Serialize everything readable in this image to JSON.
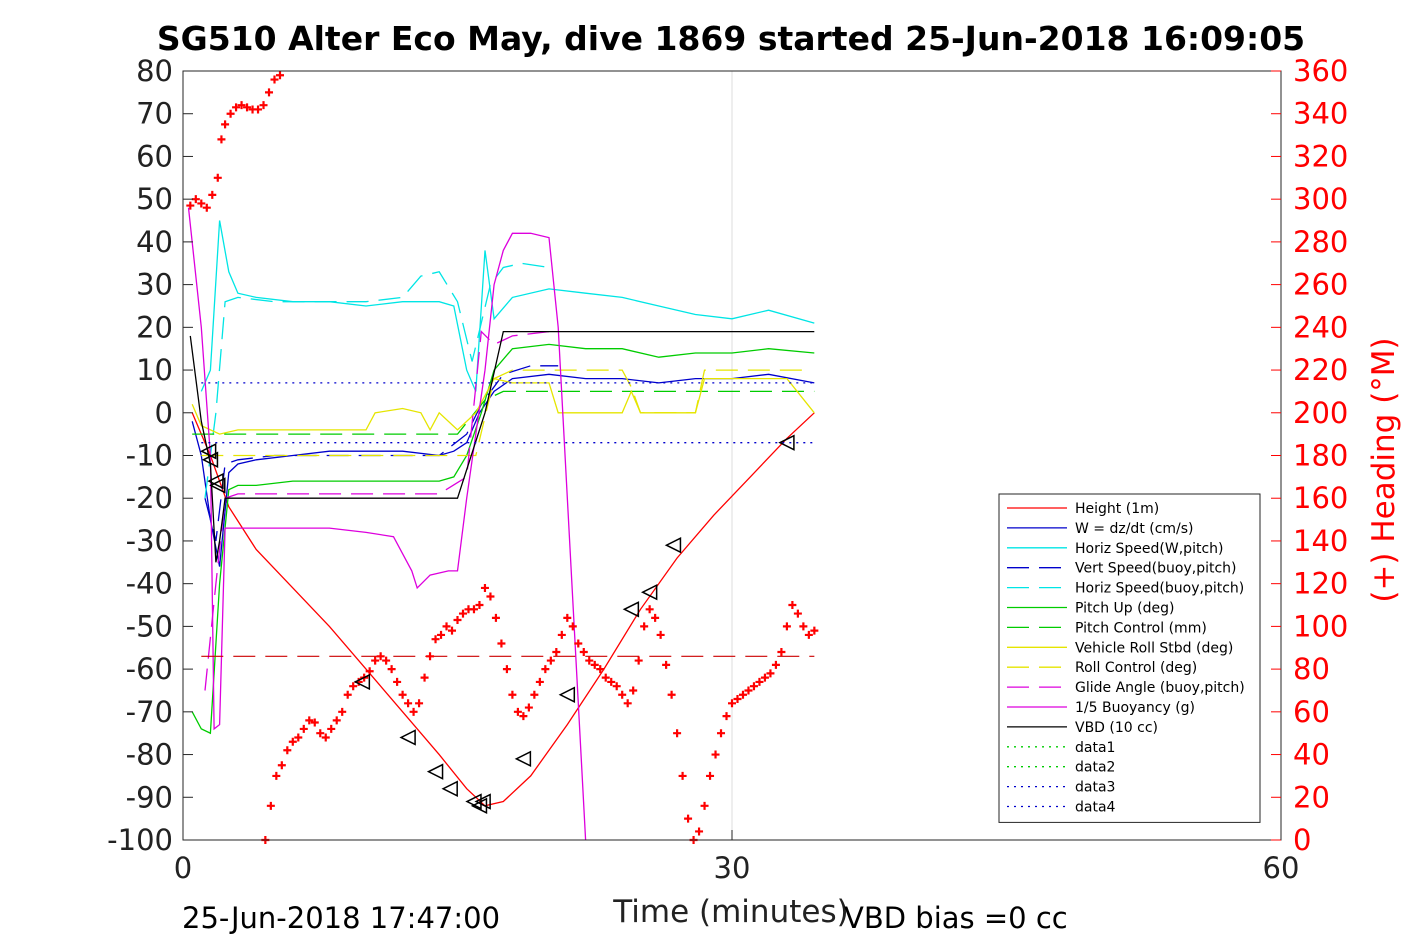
{
  "chart_data": {
    "type": "line",
    "title": "SG510 Alter Eco May, dive 1869 started 25-Jun-2018 16:09:05",
    "xlabel": "Time (minutes)",
    "ylabel_right": "(+) Heading (°M)",
    "footer_left": "25-Jun-2018 17:47:00",
    "footer_right": "VBD bias =0 cc",
    "xlim": [
      0,
      60
    ],
    "ylim_left": [
      -100,
      80
    ],
    "ylim_right": [
      0,
      360
    ],
    "x_ticks": [
      "0",
      "30",
      "60"
    ],
    "y_ticks_left": [
      "80",
      "70",
      "60",
      "50",
      "40",
      "30",
      "20",
      "10",
      "0",
      "-10",
      "-20",
      "-30",
      "-40",
      "-50",
      "-60",
      "-70",
      "-80",
      "-90",
      "-100"
    ],
    "y_ticks_right": [
      "360",
      "340",
      "320",
      "300",
      "280",
      "260",
      "240",
      "220",
      "200",
      "180",
      "160",
      "140",
      "120",
      "100",
      "80",
      "60",
      "40",
      "20",
      "0"
    ],
    "grid_x": [
      30
    ],
    "colors": {
      "red": "#ff0000",
      "blue": "#0000cc",
      "cyan": "#00e5e5",
      "green": "#00cc00",
      "yellow": "#e5e500",
      "magenta": "#dd00dd",
      "black": "#000000",
      "darkred": "#cc0000"
    },
    "legend": [
      {
        "label": "Height (1m)",
        "color": "#ff0000",
        "dash": "solid"
      },
      {
        "label": "W = dz/dt (cm/s)",
        "color": "#0000cc",
        "dash": "solid"
      },
      {
        "label": "Horiz Speed(W,pitch)",
        "color": "#00e5e5",
        "dash": "solid"
      },
      {
        "label": "Vert Speed(buoy,pitch)",
        "color": "#0000cc",
        "dash": "dashed"
      },
      {
        "label": "Horiz Speed(buoy,pitch)",
        "color": "#00e5e5",
        "dash": "dashed"
      },
      {
        "label": "Pitch Up (deg)",
        "color": "#00cc00",
        "dash": "solid"
      },
      {
        "label": "Pitch Control (mm)",
        "color": "#00cc00",
        "dash": "dashed"
      },
      {
        "label": "Vehicle Roll Stbd (deg)",
        "color": "#e5e500",
        "dash": "solid"
      },
      {
        "label": "Roll Control (deg)",
        "color": "#e5e500",
        "dash": "dashed"
      },
      {
        "label": "Glide Angle (buoy,pitch)",
        "color": "#dd00dd",
        "dash": "dashed"
      },
      {
        "label": "1/5 Buoyancy (g)",
        "color": "#dd00dd",
        "dash": "solid"
      },
      {
        "label": "VBD (10 cc)",
        "color": "#000000",
        "dash": "solid"
      },
      {
        "label": "data1",
        "color": "#00cc00",
        "dash": "dotted"
      },
      {
        "label": "data2",
        "color": "#00cc00",
        "dash": "dotted"
      },
      {
        "label": "data3",
        "color": "#0000cc",
        "dash": "dotted"
      },
      {
        "label": "data4",
        "color": "#0000cc",
        "dash": "dotted"
      }
    ],
    "series": [
      {
        "name": "Height (1m)",
        "color": "#ff0000",
        "dash": "solid",
        "axis": "left",
        "x": [
          0.5,
          1.5,
          2.5,
          4,
          6,
          8,
          10,
          12,
          14,
          15.5,
          16.5,
          17.5,
          19,
          21,
          23,
          25,
          27,
          29,
          31,
          33,
          34.5
        ],
        "y": [
          0,
          -10,
          -22,
          -32,
          -41,
          -50,
          -60,
          -70,
          -80,
          -88,
          -92,
          -91,
          -85,
          -73,
          -60,
          -46,
          -34,
          -24,
          -15,
          -6,
          0
        ]
      },
      {
        "name": "W = dz/dt (cm/s)",
        "color": "#0000cc",
        "dash": "solid",
        "axis": "left",
        "x": [
          0.5,
          1,
          1.5,
          2,
          2.5,
          3,
          4,
          6,
          8,
          10,
          12,
          14,
          14.8,
          15.5,
          16.2,
          17,
          18,
          20,
          22,
          24,
          26,
          28,
          30,
          32,
          34.5
        ],
        "y": [
          -2,
          -10,
          -25,
          -36,
          -14,
          -12,
          -11,
          -10,
          -9,
          -9,
          -9,
          -10,
          -9,
          -7,
          0,
          5,
          8,
          9,
          8,
          8,
          7,
          8,
          8,
          9,
          7
        ]
      },
      {
        "name": "Horiz Speed(W,pitch)",
        "color": "#00e5e5",
        "dash": "solid",
        "axis": "left",
        "x": [
          1,
          1.5,
          2,
          2.5,
          3,
          4,
          6,
          8,
          10,
          12,
          14,
          14.8,
          15.5,
          16,
          16.5,
          17,
          18,
          20,
          22,
          24,
          26,
          28,
          30,
          32,
          34.5
        ],
        "y": [
          5,
          10,
          45,
          33,
          28,
          27,
          26,
          26,
          25,
          26,
          26,
          25,
          10,
          5,
          38,
          22,
          27,
          29,
          28,
          27,
          25,
          23,
          22,
          24,
          21
        ]
      },
      {
        "name": "Vert Speed(buoy,pitch)",
        "color": "#0000cc",
        "dash": "dashed",
        "axis": "left",
        "x": [
          1.2,
          1.8,
          2.3,
          3,
          5,
          8,
          10,
          12,
          14,
          15.5,
          16.3,
          17.5,
          19,
          20.5
        ],
        "y": [
          -20,
          -30,
          -12,
          -11,
          -10,
          -10,
          -10,
          -10,
          -10,
          -5,
          2,
          9,
          11,
          11
        ]
      },
      {
        "name": "Horiz Speed(buoy,pitch)",
        "color": "#00e5e5",
        "dash": "dashed",
        "axis": "left",
        "x": [
          1.2,
          1.8,
          2.3,
          3,
          5,
          7,
          10,
          12,
          13,
          14,
          15,
          15.8,
          16.8,
          17.5,
          18.5,
          20
        ],
        "y": [
          -20,
          0,
          26,
          27,
          26,
          26,
          26,
          27,
          32,
          33,
          26,
          12,
          30,
          34,
          35,
          34
        ]
      },
      {
        "name": "Pitch Up (deg)",
        "color": "#00cc00",
        "dash": "solid",
        "axis": "left",
        "x": [
          0.5,
          1,
          1.5,
          2,
          2.5,
          3,
          4,
          6,
          8,
          10,
          12,
          14,
          14.8,
          15.5,
          16.3,
          17,
          18,
          20,
          22,
          24,
          26,
          28,
          30,
          32,
          34.5
        ],
        "y": [
          -70,
          -74,
          -75,
          -40,
          -18,
          -17,
          -17,
          -16,
          -16,
          -16,
          -16,
          -16,
          -15,
          -10,
          0,
          10,
          15,
          16,
          15,
          15,
          13,
          14,
          14,
          15,
          14
        ]
      },
      {
        "name": "Pitch Control (mm)",
        "color": "#00cc00",
        "dash": "dashed",
        "axis": "left",
        "x": [
          0.5,
          1,
          14,
          15,
          16.5,
          17.5,
          34.5
        ],
        "y": [
          -5,
          -5,
          -5,
          -5,
          3,
          5,
          5
        ]
      },
      {
        "name": "Vehicle Roll Stbd (deg)",
        "color": "#e5e500",
        "dash": "solid",
        "axis": "left",
        "x": [
          0.5,
          1,
          2,
          3,
          5,
          8,
          10,
          10.5,
          12,
          13,
          13.5,
          14,
          15,
          16,
          17,
          18,
          20,
          20.5,
          24,
          24.5,
          25,
          28,
          28.5,
          30,
          32,
          33,
          34.5
        ],
        "y": [
          2,
          -3,
          -5,
          -4,
          -4,
          -4,
          -4,
          0,
          1,
          0,
          -4,
          0,
          -4,
          0,
          8,
          7,
          7,
          0,
          0,
          5,
          0,
          0,
          8,
          8,
          8,
          8,
          0
        ]
      },
      {
        "name": "Roll Control (deg)",
        "color": "#e5e500",
        "dash": "dashed",
        "axis": "left",
        "x": [
          1,
          3,
          16,
          17,
          18,
          20,
          24,
          24.5,
          25,
          28,
          28.5,
          33,
          34
        ],
        "y": [
          -10,
          -10,
          -10,
          8,
          10,
          10,
          10,
          6,
          0,
          0,
          10,
          10,
          10
        ]
      },
      {
        "name": "Glide Angle (buoy,pitch)",
        "color": "#dd00dd",
        "dash": "dashed",
        "axis": "left",
        "x": [
          1.2,
          1.8,
          2.3,
          3,
          5,
          8,
          10,
          12,
          14,
          15.5,
          16.3,
          17,
          18,
          20
        ],
        "y": [
          -65,
          -40,
          -20,
          -19,
          -19,
          -19,
          -19,
          -19,
          -19,
          -15,
          19,
          16,
          18,
          19
        ]
      },
      {
        "name": "1/5 Buoyancy (g)",
        "color": "#dd00dd",
        "dash": "solid",
        "axis": "left",
        "x": [
          0.3,
          1,
          1.5,
          1.7,
          2,
          2.3,
          5,
          8,
          10,
          11.5,
          12.5,
          12.8,
          13.5,
          14.5,
          15,
          15.5,
          16,
          16.5,
          17,
          17.5,
          18,
          19,
          20,
          20.5,
          22
        ],
        "y": [
          48,
          20,
          -10,
          -74,
          -73,
          -27,
          -27,
          -27,
          -28,
          -29,
          -37,
          -41,
          -38,
          -37,
          -37,
          -20,
          -5,
          10,
          30,
          38,
          42,
          42,
          41,
          20,
          -100
        ]
      },
      {
        "name": "VBD (10 cc)",
        "color": "#000000",
        "dash": "solid",
        "axis": "left",
        "x": [
          0.4,
          1,
          1.5,
          1.8,
          2,
          2.3,
          3,
          10,
          14.5,
          15,
          16.5,
          17.5,
          18,
          34.5
        ],
        "y": [
          18,
          -2,
          -12,
          -35,
          -30,
          -20,
          -20,
          -20,
          -20,
          -20,
          0,
          19,
          19,
          19
        ]
      },
      {
        "name": "data1",
        "color": "#00cc00",
        "dash": "dotted",
        "axis": "left",
        "x": [],
        "y": []
      },
      {
        "name": "data2",
        "color": "#00cc00",
        "dash": "dotted",
        "axis": "left",
        "x": [],
        "y": []
      },
      {
        "name": "data3",
        "color": "#0000cc",
        "dash": "dotted",
        "axis": "left",
        "x": [
          1,
          34.5
        ],
        "y": [
          7,
          7
        ]
      },
      {
        "name": "data4",
        "color": "#0000cc",
        "dash": "dotted",
        "axis": "left",
        "x": [
          1,
          34.5
        ],
        "y": [
          -7,
          -7
        ]
      }
    ],
    "heading_ref": {
      "color": "#cc0000",
      "dash": "dashed",
      "x": [
        1,
        34.5
      ],
      "y": [
        -57,
        -57
      ]
    },
    "heading_points": {
      "color": "#ff0000",
      "axis": "right",
      "x": [
        0.4,
        0.7,
        1,
        1.3,
        1.6,
        1.9,
        2.1,
        2.3,
        2.6,
        2.9,
        3.2,
        3.5,
        3.8,
        4.1,
        4.4,
        4.7,
        5,
        5.3,
        4.5,
        4.8,
        5.1,
        5.4,
        5.7,
        6,
        6.3,
        6.6,
        6.9,
        7.2,
        7.5,
        7.8,
        8.1,
        8.4,
        8.7,
        9,
        9.3,
        9.6,
        9.9,
        10.2,
        10.5,
        10.8,
        11.1,
        11.4,
        11.7,
        12,
        12.3,
        12.6,
        12.9,
        13.2,
        13.5,
        13.8,
        14.1,
        14.4,
        14.7,
        15,
        15.3,
        15.6,
        15.9,
        16.2,
        16.5,
        16.8,
        17.1,
        17.4,
        17.7,
        18,
        18.3,
        18.6,
        18.9,
        19.2,
        19.5,
        19.8,
        20.1,
        20.4,
        20.7,
        21,
        21.3,
        21.6,
        21.9,
        22.2,
        22.5,
        22.8,
        23.1,
        23.4,
        23.7,
        24,
        24.3,
        24.6,
        24.9,
        25.2,
        25.5,
        25.8,
        26.1,
        26.4,
        26.7,
        27,
        27.3,
        27.6,
        27.9,
        28.2,
        28.5,
        28.8,
        29.1,
        29.4,
        29.7,
        30,
        30.3,
        30.6,
        30.9,
        31.2,
        31.5,
        31.8,
        32.1,
        32.4,
        32.7,
        33,
        33.3,
        33.6,
        33.9,
        34.2,
        34.5
      ],
      "y": [
        297,
        300,
        298,
        296,
        302,
        310,
        328,
        335,
        340,
        343,
        344,
        343,
        342,
        342,
        344,
        350,
        356,
        358,
        0,
        16,
        30,
        35,
        42,
        46,
        48,
        52,
        56,
        55,
        50,
        48,
        52,
        56,
        60,
        68,
        72,
        74,
        76,
        79,
        84,
        86,
        84,
        80,
        74,
        68,
        64,
        60,
        64,
        76,
        86,
        94,
        96,
        100,
        98,
        103,
        106,
        108,
        108,
        110,
        118,
        114,
        104,
        92,
        80,
        68,
        60,
        58,
        62,
        68,
        74,
        80,
        84,
        88,
        96,
        104,
        100,
        92,
        88,
        84,
        82,
        80,
        76,
        74,
        72,
        68,
        64,
        70,
        84,
        100,
        108,
        104,
        96,
        82,
        68,
        50,
        30,
        10,
        0,
        4,
        16,
        30,
        40,
        50,
        58,
        64,
        66,
        68,
        70,
        72,
        74,
        76,
        78,
        82,
        88,
        100,
        110,
        106,
        100,
        96,
        98
      ]
    },
    "depth_markers": {
      "color": "#000000",
      "axis": "left",
      "x": [
        1.4,
        1.5,
        1.8,
        1.9,
        9.8,
        12.3,
        13.8,
        14.6,
        15.9,
        16.2,
        16.4,
        18.6,
        21,
        24.5,
        25.5,
        26.8,
        33
      ],
      "y": [
        -9,
        -11,
        -16,
        -17,
        -63,
        -76,
        -84,
        -88,
        -91,
        -92,
        -91,
        -81,
        -66,
        -46,
        -42,
        -31,
        -7
      ]
    }
  }
}
